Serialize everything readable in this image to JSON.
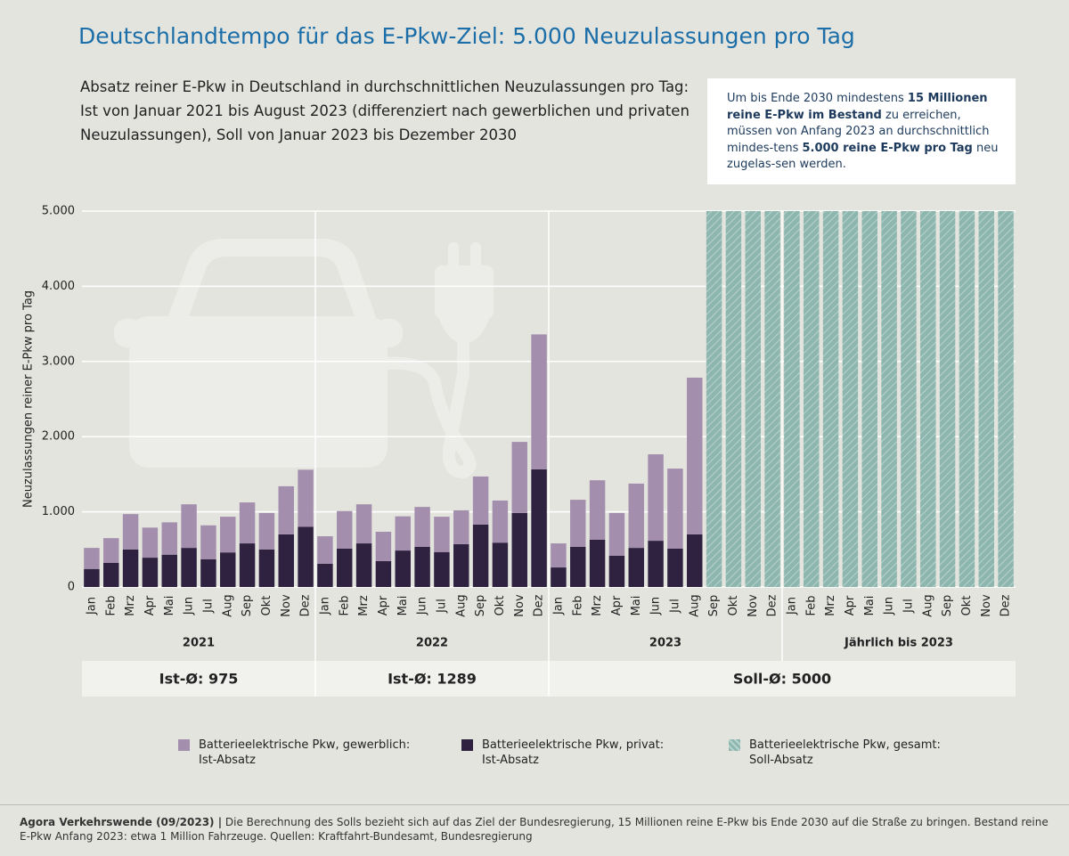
{
  "chart_data": {
    "type": "bar",
    "title": "Deutschlandtempo für das E-Pkw-Ziel: 5.000 Neuzulassungen pro Tag",
    "subtitle": "Absatz reiner E-Pkw in Deutschland in durchschnittlichen Neuzulassungen pro Tag: Ist von Januar 2021 bis August 2023 (differenziert nach gewerblichen und privaten Neuzulassungen), Soll von Januar 2023 bis Dezember 2030",
    "info_box": [
      {
        "text": "Um bis Ende 2030 mindestens ",
        "bold": false
      },
      {
        "text": "15 Millionen reine E-Pkw im Bestand",
        "bold": true
      },
      {
        "text": " zu erreichen, müssen von Anfang 2023 an durchschnittlich mindes-tens ",
        "bold": false
      },
      {
        "text": "5.000 reine E-Pkw pro Tag",
        "bold": true
      },
      {
        "text": " neu zugelas-sen werden.",
        "bold": false
      }
    ],
    "y_label": "Neuzulassungen reiner E-Pkw pro Tag",
    "ylim": [
      0,
      5000
    ],
    "yticks": [
      0,
      {
        "value": 1000,
        "label": "1.000"
      },
      {
        "value": 2000,
        "label": "2.000"
      },
      {
        "value": 3000,
        "label": "3.000"
      },
      {
        "value": 4000,
        "label": "4.000"
      },
      {
        "value": 5000,
        "label": "5.000"
      }
    ],
    "grid": true,
    "categories": [
      "Jan",
      "Feb",
      "Mrz",
      "Apr",
      "Mai",
      "Jun",
      "Jul",
      "Aug",
      "Sep",
      "Okt",
      "Nov",
      "Dez",
      "Jan",
      "Feb",
      "Mrz",
      "Apr",
      "Mai",
      "Jun",
      "Jul",
      "Aug",
      "Sep",
      "Okt",
      "Nov",
      "Dez",
      "Jan",
      "Feb",
      "Mrz",
      "Apr",
      "Mai",
      "Jun",
      "Jul",
      "Aug",
      "Sep",
      "Okt",
      "Nov",
      "Dez",
      "Jan",
      "Feb",
      "Mrz",
      "Apr",
      "Mai",
      "Jun",
      "Jul",
      "Aug",
      "Sep",
      "Okt",
      "Nov",
      "Dez"
    ],
    "groups": [
      "2021",
      "2022",
      "2023",
      "Jährlich bis 2023"
    ],
    "averages": [
      "Ist-Ø: 975",
      "Ist-Ø: 1289",
      "Soll-Ø: 5000"
    ],
    "series": [
      {
        "name": "Batterieelektrische Pkw, gewerblich:\nIst-Absatz",
        "color": "#a48ead",
        "values": [
          280,
          330,
          470,
          400,
          430,
          580,
          450,
          475,
          545,
          485,
          640,
          760,
          365,
          500,
          520,
          390,
          455,
          530,
          470,
          450,
          640,
          560,
          945,
          1795,
          320,
          625,
          790,
          570,
          855,
          1150,
          1065,
          2085,
          null,
          null,
          null,
          null,
          null,
          null,
          null,
          null,
          null,
          null,
          null,
          null,
          null,
          null,
          null,
          null
        ]
      },
      {
        "name": "Batterieelektrische Pkw, privat:\nIst-Absatz",
        "color": "#2e2240",
        "values": [
          240,
          320,
          500,
          390,
          430,
          520,
          370,
          460,
          580,
          500,
          700,
          800,
          310,
          510,
          580,
          345,
          485,
          535,
          465,
          570,
          830,
          590,
          985,
          1565,
          260,
          535,
          630,
          415,
          520,
          615,
          510,
          700,
          null,
          null,
          null,
          null,
          null,
          null,
          null,
          null,
          null,
          null,
          null,
          null,
          null,
          null,
          null,
          null
        ]
      },
      {
        "name": "Batterieelektrische Pkw, gesamt:\nSoll-Absatz",
        "color": "#8db6ae",
        "values": [
          null,
          null,
          null,
          null,
          null,
          null,
          null,
          null,
          null,
          null,
          null,
          null,
          null,
          null,
          null,
          null,
          null,
          null,
          null,
          null,
          null,
          null,
          null,
          null,
          null,
          null,
          null,
          null,
          null,
          null,
          null,
          null,
          5000,
          5000,
          5000,
          5000,
          5000,
          5000,
          5000,
          5000,
          5000,
          5000,
          5000,
          5000,
          5000,
          5000,
          5000,
          5000
        ]
      }
    ],
    "footnote": [
      {
        "text": "Agora Verkehrswende (09/2023) |",
        "bold": true
      },
      {
        "text": " Die Berechnung des Solls bezieht sich auf das Ziel der Bundesregierung, 15 Millionen reine E-Pkw bis Ende 2030 auf die Straße zu bringen. Bestand reine E-Pkw Anfang 2023: etwa 1 Million Fahrzeuge. Quellen: Kraftfahrt-Bundesamt, Bundesregierung",
        "bold": false
      }
    ]
  }
}
